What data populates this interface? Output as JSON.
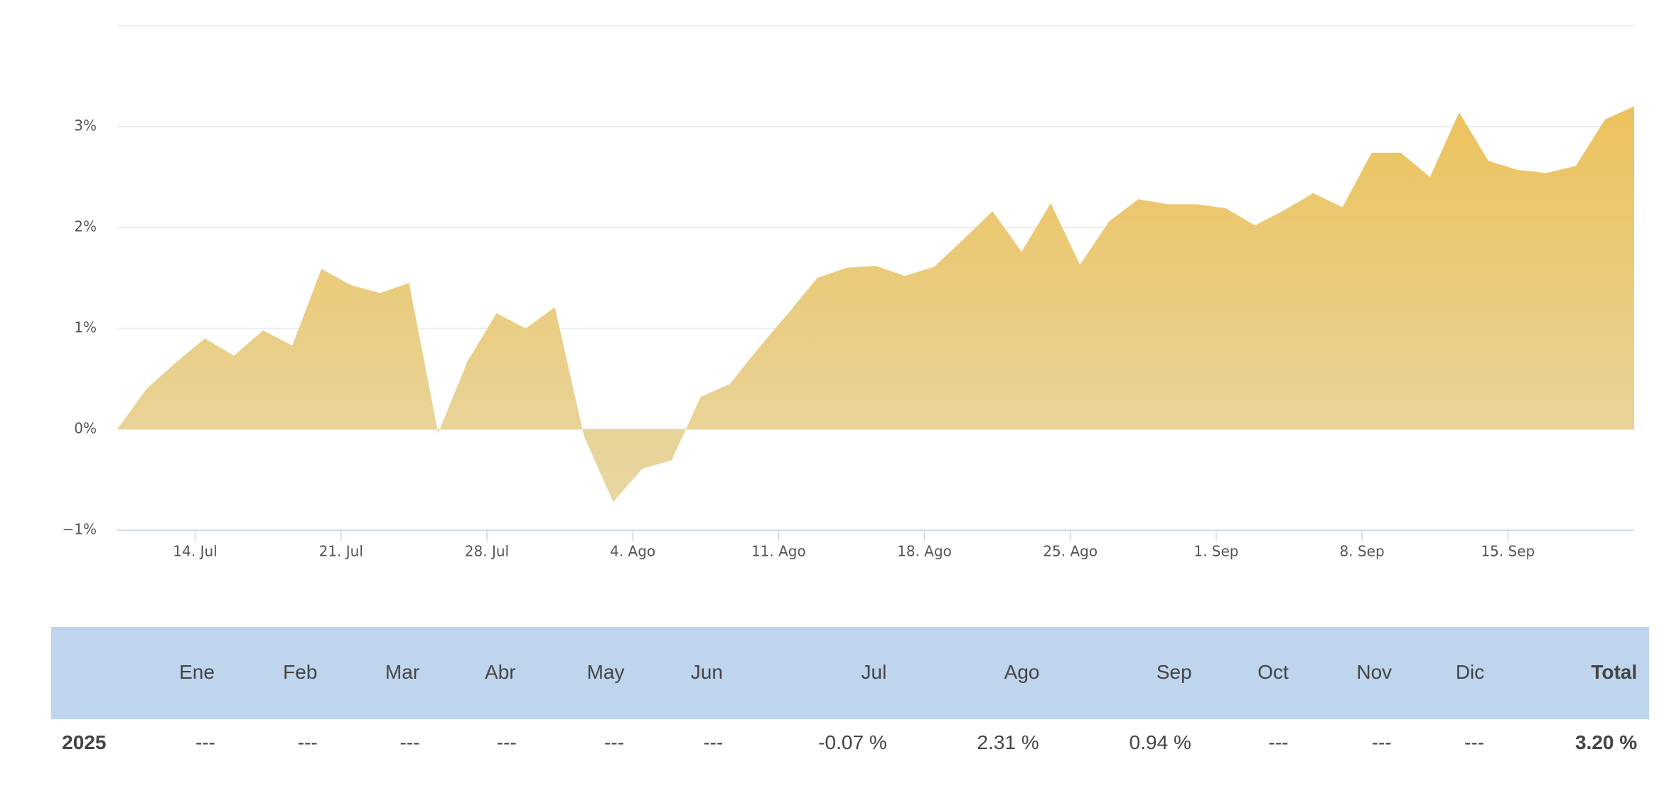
{
  "chart_data": {
    "type": "area",
    "categories": [
      null,
      null,
      null,
      null,
      null,
      null,
      null,
      null,
      null,
      null,
      null,
      null,
      null,
      null,
      null,
      null,
      null,
      null,
      null,
      null,
      null,
      null,
      null,
      null,
      null,
      null,
      null,
      null,
      null,
      null,
      null,
      null,
      null,
      null,
      null,
      null,
      null,
      null,
      null,
      null,
      null,
      null,
      null,
      null,
      null,
      null,
      null,
      null,
      null,
      null,
      null,
      null,
      null
    ],
    "values": [
      0,
      0.4,
      0.66,
      0.9,
      0.73,
      0.98,
      0.83,
      1.59,
      1.43,
      1.35,
      1.45,
      -0.04,
      0.67,
      1.15,
      1.0,
      1.21,
      -0.07,
      -0.72,
      -0.39,
      -0.31,
      0.32,
      0.45,
      0.81,
      1.15,
      1.5,
      1.6,
      1.62,
      1.52,
      1.61,
      1.88,
      2.16,
      1.76,
      2.24,
      1.63,
      2.06,
      2.28,
      2.23,
      2.23,
      2.19,
      2.02,
      2.17,
      2.34,
      2.2,
      2.74,
      2.74,
      2.5,
      3.14,
      2.66,
      2.57,
      2.54,
      2.61,
      3.07,
      3.2
    ],
    "color": "#ecc25c",
    "ylim": [
      -1,
      4
    ],
    "yticks": [
      {
        "value": -1,
        "label": "−1%"
      },
      {
        "value": 0,
        "label": "0%"
      },
      {
        "value": 1,
        "label": "1%"
      },
      {
        "value": 2,
        "label": "2%"
      },
      {
        "value": 3,
        "label": "3%"
      }
    ],
    "xticks": [
      {
        "value": 2.67,
        "label": "14. Jul"
      },
      {
        "value": 7.67,
        "label": "21. Jul"
      },
      {
        "value": 12.67,
        "label": "28. Jul"
      },
      {
        "value": 17.67,
        "label": "4. Ago"
      },
      {
        "value": 22.67,
        "label": "11. Ago"
      },
      {
        "value": 27.67,
        "label": "18. Ago"
      },
      {
        "value": 32.67,
        "label": "25. Ago"
      },
      {
        "value": 37.67,
        "label": "1. Sep"
      },
      {
        "value": 42.67,
        "label": "8. Sep"
      },
      {
        "value": 47.67,
        "label": "15. Sep"
      }
    ],
    "grid": true
  },
  "table": {
    "header": [
      "Ene",
      "Feb",
      "Mar",
      "Abr",
      "May",
      "Jun",
      "Jul",
      "Ago",
      "Sep",
      "Oct",
      "Nov",
      "Dic",
      "Total"
    ],
    "rows": [
      [
        "2025",
        "---",
        "---",
        "---",
        "---",
        "---",
        "---",
        "-0.07 %",
        "2.31 %",
        "0.94 %",
        "---",
        "---",
        "---",
        "3.20 %"
      ]
    ]
  }
}
